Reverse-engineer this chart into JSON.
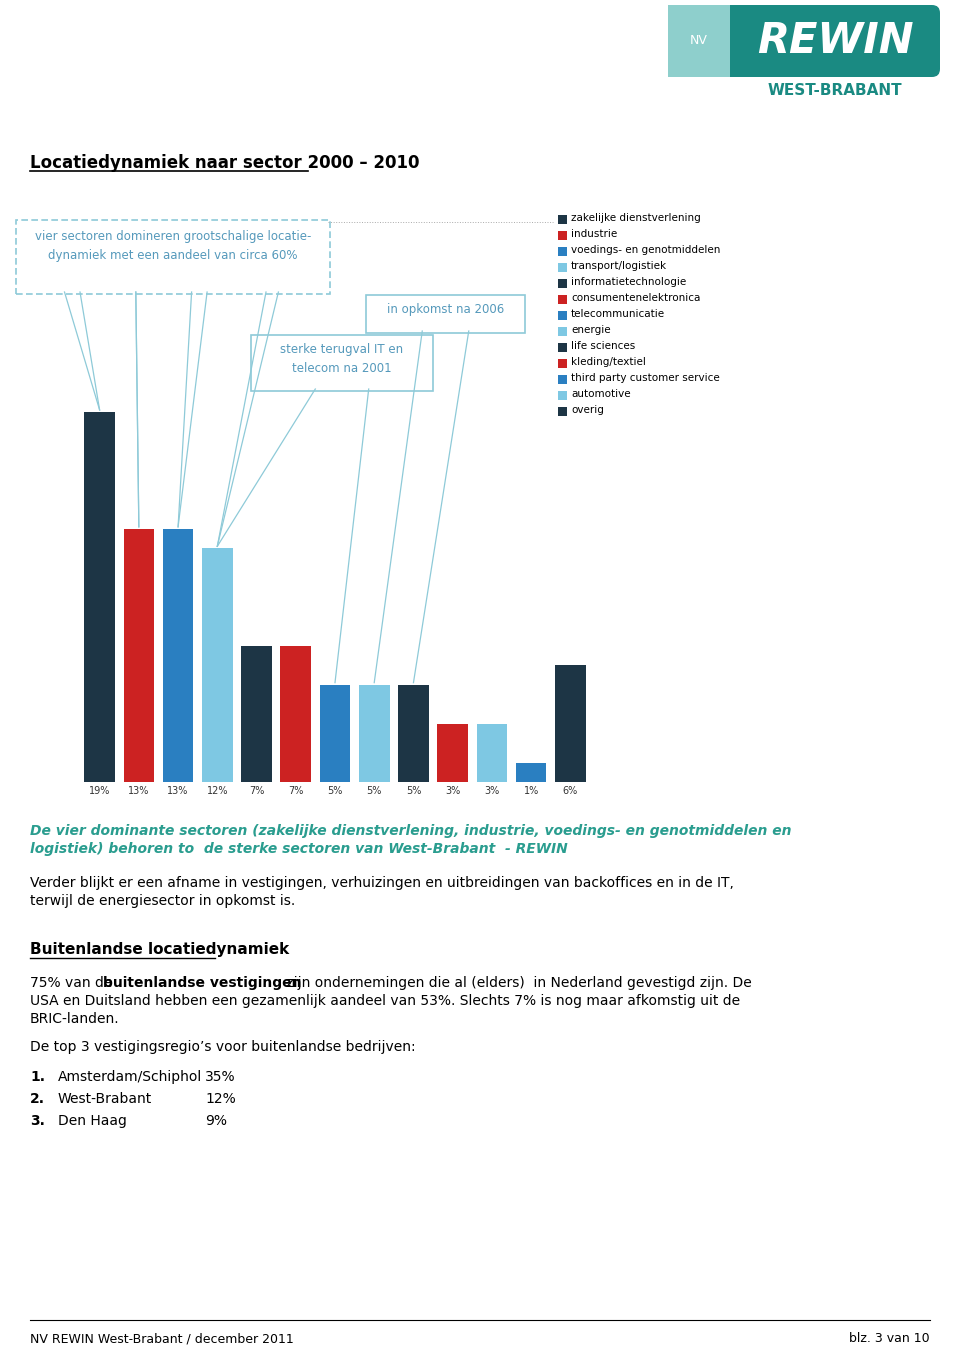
{
  "title_section": "Locatiedynamiek naar sector 2000 – 2010",
  "bar_values": [
    19,
    13,
    13,
    12,
    7,
    7,
    5,
    5,
    5,
    3,
    3,
    1,
    6
  ],
  "bar_colors": [
    "#1d3545",
    "#cc2222",
    "#2a7fc1",
    "#7ec8e3",
    "#1d3545",
    "#cc2222",
    "#2a7fc1",
    "#7ec8e3",
    "#1d3545",
    "#cc2222",
    "#7ec8e3",
    "#2a7fc1",
    "#1d3545"
  ],
  "bar_labels": [
    "19%",
    "13%",
    "13%",
    "12%",
    "7%",
    "7%",
    "5%",
    "5%",
    "5%",
    "3%",
    "3%",
    "1%",
    "6%"
  ],
  "legend_items": [
    [
      "#1d3545",
      "zakelijke dienstverlening"
    ],
    [
      "#cc2222",
      "industrie"
    ],
    [
      "#2a7fc1",
      "voedings- en genotmiddelen"
    ],
    [
      "#7ec8e3",
      "transport/logistiek"
    ],
    [
      "#1d3545",
      "informatietechnologie"
    ],
    [
      "#cc2222",
      "consumentenelektronica"
    ],
    [
      "#2a7fc1",
      "telecommunicatie"
    ],
    [
      "#7ec8e3",
      "energie"
    ],
    [
      "#1d3545",
      "life sciences"
    ],
    [
      "#cc2222",
      "kleding/textiel"
    ],
    [
      "#2a7fc1",
      "third party customer service"
    ],
    [
      "#7ec8e3",
      "automotive"
    ],
    [
      "#1d3545",
      "overig"
    ]
  ],
  "annotation_box1_text": "vier sectoren domineren grootschalige locatie-\ndynamiek met een aandeel van circa 60%",
  "annotation_box2_text": "sterke terugval IT en\ntelecom na 2001",
  "annotation_box3_text": "in opkomst na 2006",
  "bold_line1": "De vier dominante sectoren (zakelijke dienstverlening, industrie, voedings- en genotmiddelen en",
  "bold_line2": "logistiek) behoren to  de sterke sectoren van West-Brabant  - REWIN",
  "normal_line1": "Verder blijkt er een afname in vestigingen, verhuizingen en uitbreidingen van backoffices en in de IT,",
  "normal_line2": "terwijl de energiesector in opkomst is.",
  "section_header": "Buitenlandse locatiedynamiek",
  "para1_normal": "75% van de ",
  "para1_bold": "buitenlandse vestigingen",
  "para1_rest": " zijn ondernemingen die al (elders)  in Nederland gevestigd zijn. De",
  "para1_line2": "USA en Duitsland hebben een gezamenlijk aandeel van 53%. Slechts 7% is nog maar afkomstig uit de",
  "para1_line3": "BRIC-landen.",
  "top3_intro": "De top 3 vestigingsregio’s voor buitenlandse bedrijven:",
  "list_items": [
    [
      "1.",
      "Amsterdam/Schiphol",
      "35%"
    ],
    [
      "2.",
      "West-Brabant",
      "12%"
    ],
    [
      "3.",
      "Den Haag",
      "9%"
    ]
  ],
  "footer_left": "NV REWIN West-Brabant / december 2011",
  "footer_right": "blz. 3 van 10",
  "bold_text_color": "#2a9d8f",
  "background": "#ffffff",
  "logo_teal_light": "#8ecfcc",
  "logo_teal_dark": "#1a8a82",
  "logo_text_below": "#1a8a82"
}
